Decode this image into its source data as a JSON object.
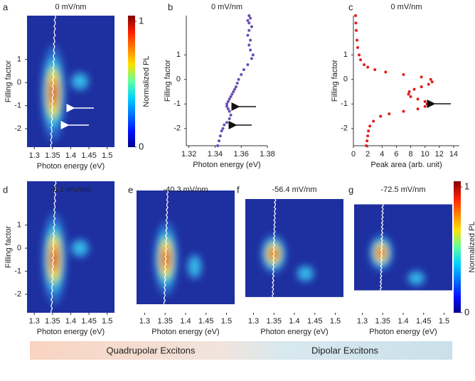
{
  "chart_data": [
    {
      "type": "heatmap",
      "panel": "a",
      "title": "0 mV/nm",
      "x_label": "Photon energy (eV)",
      "y_label": "Filling factor",
      "xlim": [
        1.28,
        1.52
      ],
      "xticks": [
        1.3,
        1.35,
        1.4,
        1.45,
        1.5
      ],
      "ylim": [
        -2.8,
        2.9
      ],
      "yticks": [
        -2,
        -1,
        0,
        1
      ],
      "colorbar": {
        "label": "Normalized PL",
        "ticks": [
          0,
          1
        ]
      }
    },
    {
      "type": "scatter",
      "panel": "b",
      "title": "0 mV/nm",
      "x_label": "Photon energy (eV)",
      "y_label": "Filling factor",
      "color": "#6a4fb5",
      "xlim": [
        1.318,
        1.38
      ],
      "xticks": [
        1.32,
        1.34,
        1.36,
        1.38
      ],
      "ylim": [
        -2.7,
        2.6
      ],
      "yticks": [
        -2,
        -1,
        0,
        1
      ],
      "x": [
        1.342,
        1.343,
        1.344,
        1.345,
        1.346,
        1.347,
        1.349,
        1.351,
        1.352,
        1.351,
        1.35,
        1.349,
        1.349,
        1.35,
        1.351,
        1.352,
        1.353,
        1.354,
        1.355,
        1.356,
        1.357,
        1.358,
        1.36,
        1.362,
        1.365,
        1.368,
        1.369,
        1.367,
        1.366,
        1.367,
        1.365,
        1.366,
        1.368,
        1.366,
        1.365,
        1.367,
        1.366
      ],
      "values": [
        -2.7,
        -2.5,
        -2.3,
        -2.1,
        -2.0,
        -1.85,
        -1.75,
        -1.6,
        -1.45,
        -1.3,
        -1.2,
        -1.1,
        -1.0,
        -0.9,
        -0.8,
        -0.7,
        -0.6,
        -0.5,
        -0.4,
        -0.3,
        -0.15,
        0.0,
        0.2,
        0.4,
        0.6,
        0.85,
        1.0,
        1.2,
        1.4,
        1.6,
        1.8,
        2.0,
        2.15,
        2.3,
        2.4,
        2.5,
        2.6
      ]
    },
    {
      "type": "scatter",
      "panel": "c",
      "title": "0 mV/nm",
      "x_label": "Peak area (arb. unit)",
      "y_label": "Filling factor",
      "color": "#e0201b",
      "xlim": [
        0,
        14.8
      ],
      "xticks": [
        0,
        2,
        4,
        6,
        8,
        10,
        12,
        14
      ],
      "ylim": [
        -2.7,
        2.6
      ],
      "yticks": [
        -2,
        -1,
        0,
        1
      ],
      "x": [
        1.8,
        1.9,
        2.0,
        2.1,
        2.3,
        2.8,
        3.8,
        5.0,
        7.0,
        9.0,
        10.0,
        10.3,
        10.0,
        9.0,
        8.0,
        7.7,
        7.8,
        8.5,
        9.5,
        10.5,
        11.0,
        10.8,
        9.5,
        7.0,
        4.5,
        3.0,
        2.0,
        1.5,
        1.0,
        0.8,
        0.6,
        0.5,
        0.4,
        0.35,
        0.3
      ],
      "values": [
        -2.7,
        -2.5,
        -2.3,
        -2.1,
        -1.9,
        -1.7,
        -1.5,
        -1.4,
        -1.3,
        -1.2,
        -1.1,
        -1.0,
        -0.9,
        -0.8,
        -0.7,
        -0.6,
        -0.5,
        -0.4,
        -0.3,
        -0.2,
        -0.1,
        0.0,
        0.1,
        0.2,
        0.3,
        0.4,
        0.5,
        0.6,
        0.8,
        1.0,
        1.3,
        1.6,
        2.0,
        2.3,
        2.6
      ]
    },
    {
      "type": "heatmap",
      "panel": "d",
      "title": "-8.1 mV/nm",
      "x_label": "Photon energy (eV)",
      "y_label": "Filling factor",
      "xlim": [
        1.28,
        1.52
      ],
      "xticks": [
        1.3,
        1.35,
        1.4,
        1.45,
        1.5
      ],
      "ylim": [
        -2.8,
        2.9
      ],
      "yticks": [
        -2,
        -1,
        0,
        1
      ]
    },
    {
      "type": "heatmap",
      "panel": "e",
      "title": "-40.3 mV/nm",
      "x_label": "Photon energy (eV)",
      "xlim": [
        1.28,
        1.52
      ],
      "xticks": [
        1.3,
        1.35,
        1.4,
        1.45,
        1.5
      ],
      "ylim": [
        -2.8,
        2.9
      ]
    },
    {
      "type": "heatmap",
      "panel": "f",
      "title": "-56.4 mV/nm",
      "x_label": "Photon energy (eV)",
      "xlim": [
        1.28,
        1.52
      ],
      "xticks": [
        1.3,
        1.35,
        1.4,
        1.45,
        1.5
      ],
      "ylim": [
        -2.8,
        2.9
      ]
    },
    {
      "type": "heatmap",
      "panel": "g",
      "title": "-72.5 mV/nm",
      "x_label": "Photon energy (eV)",
      "xlim": [
        1.28,
        1.52
      ],
      "xticks": [
        1.3,
        1.35,
        1.4,
        1.45,
        1.5
      ],
      "ylim": [
        -2.8,
        2.9
      ],
      "colorbar": {
        "label": "Normalized PL",
        "ticks": [
          0,
          1
        ]
      }
    }
  ],
  "banner": {
    "left": "Quadrupolar Excitons",
    "right": "Dipolar Excitons"
  }
}
